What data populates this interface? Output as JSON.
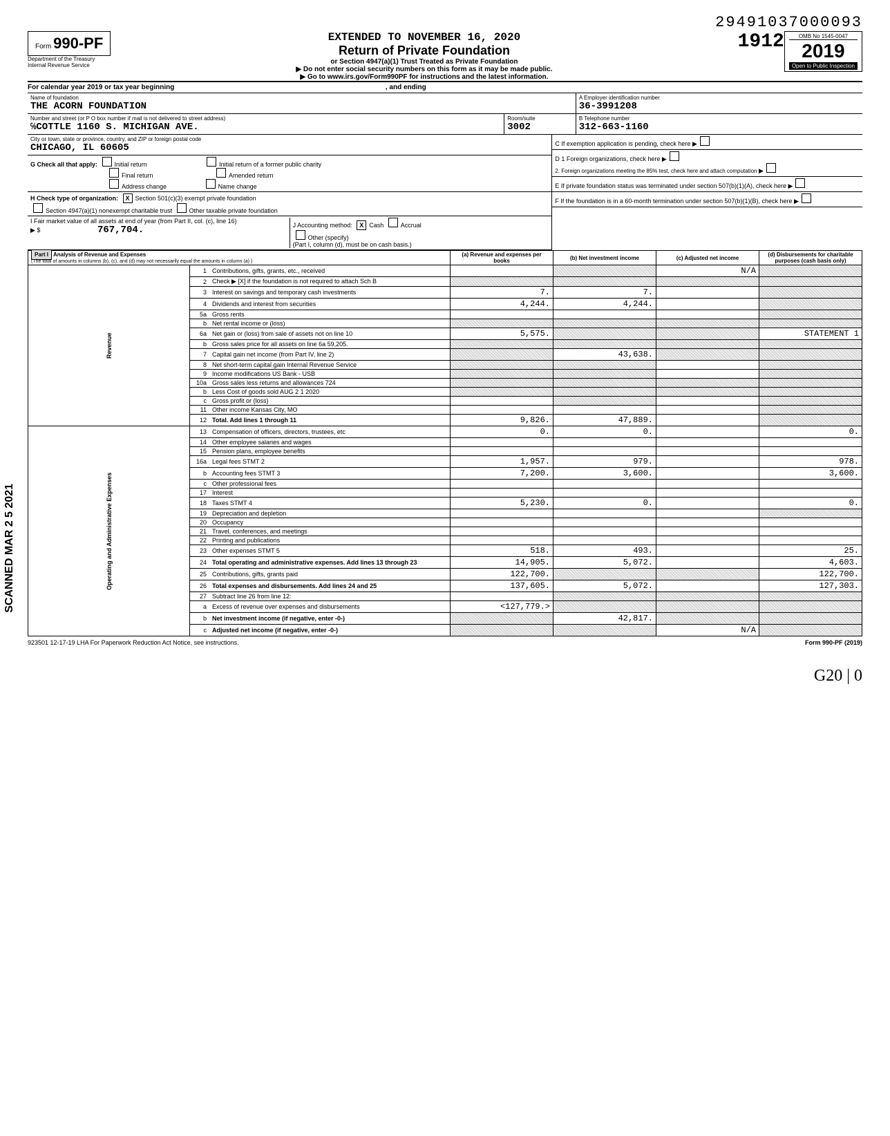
{
  "header": {
    "dln": "29491037000093",
    "extended": "EXTENDED TO NOVEMBER 16, 2020",
    "title": "Return of Private Foundation",
    "subtitle1": "or Section 4947(a)(1) Trust Treated as Private Foundation",
    "subtitle2": "▶ Do not enter social security numbers on this form as it may be made public.",
    "subtitle3": "▶ Go to www.irs.gov/Form990PF for instructions and the latest information.",
    "form_label": "Form",
    "form_number": "990-PF",
    "dept1": "Department of the Treasury",
    "dept2": "Internal Revenue Service",
    "omb": "OMB No  1545-0047",
    "year": "2019",
    "open": "Open to Public Inspection",
    "stamp_num": "1912"
  },
  "cal_year": "For calendar year 2019 or tax year beginning",
  "cal_year_end": ", and ending",
  "name": {
    "label": "Name of foundation",
    "value": "THE ACORN FOUNDATION"
  },
  "ein": {
    "label": "A Employer identification number",
    "value": "36-3991208"
  },
  "address": {
    "label": "Number and street (or P O  box number if mail is not delivered to street address)",
    "value": "℅COTTLE 1160 S. MICHIGAN AVE.",
    "room_label": "Room/suite",
    "room": "3002"
  },
  "phone": {
    "label": "B  Telephone number",
    "value": "312-663-1160"
  },
  "city": {
    "label": "City or town, state or province, country, and ZIP or foreign postal code",
    "value": "CHICAGO, IL   60605"
  },
  "box_c": "C  If exemption application is pending, check here",
  "box_g": {
    "label": "G  Check all that apply:",
    "opts": [
      "Initial return",
      "Final return",
      "Address change",
      "Initial return of a former public charity",
      "Amended return",
      "Name change"
    ]
  },
  "box_d": {
    "d1": "D 1  Foreign organizations, check here",
    "d2": "2.  Foreign organizations meeting the 85% test, check here and attach computation"
  },
  "box_h": {
    "label": "H  Check type of organization:",
    "opt1": "Section 501(c)(3) exempt private foundation",
    "opt2": "Section 4947(a)(1) nonexempt charitable trust",
    "opt3": "Other taxable private foundation"
  },
  "box_e": "E  If private foundation status was terminated under section 507(b)(1)(A), check here",
  "box_i": {
    "label": "I  Fair market value of all assets at end of year (from Part II, col. (c), line 16)",
    "value": "767,704.",
    "arrow": "▶ $"
  },
  "box_j": {
    "label": "J  Accounting method:",
    "cash": "Cash",
    "accrual": "Accrual",
    "other": "Other (specify)",
    "note": "(Part I, column (d), must be on cash basis.)"
  },
  "box_f": "F  If the foundation is in a 60-month termination under section 507(b)(1)(B), check here",
  "part1": {
    "title": "Part I",
    "heading": "Analysis of Revenue and Expenses",
    "subheading": "(The total of amounts in columns (b), (c), and (d) may not necessarily equal the amounts in column (a) )",
    "col_a": "(a) Revenue and expenses per books",
    "col_b": "(b) Net investment income",
    "col_c": "(c) Adjusted net income",
    "col_d": "(d) Disbursements for charitable purposes (cash basis only)"
  },
  "revenue_label": "Revenue",
  "expenses_label": "Operating and Administrative Expenses",
  "rows": [
    {
      "no": "1",
      "desc": "Contributions, gifts, grants, etc., received",
      "a": "",
      "b": "shaded",
      "c": "N/A",
      "d": "shaded"
    },
    {
      "no": "2",
      "desc": "Check ▶ [X] if the foundation is not required to attach Sch  B",
      "a": "shaded",
      "b": "shaded",
      "c": "shaded",
      "d": "shaded"
    },
    {
      "no": "3",
      "desc": "Interest on savings and temporary cash investments",
      "a": "7.",
      "b": "7.",
      "c": "",
      "d": "shaded"
    },
    {
      "no": "4",
      "desc": "Dividends and interest from securities",
      "a": "4,244.",
      "b": "4,244.",
      "c": "",
      "d": "shaded"
    },
    {
      "no": "5a",
      "desc": "Gross rents",
      "a": "",
      "b": "",
      "c": "",
      "d": "shaded"
    },
    {
      "no": "b",
      "desc": "Net rental income or (loss)",
      "a": "shaded",
      "b": "shaded",
      "c": "shaded",
      "d": "shaded"
    },
    {
      "no": "6a",
      "desc": "Net gain or (loss) from sale of assets not on line 10",
      "a": "5,575.",
      "b": "shaded",
      "c": "shaded",
      "d": "STATEMENT  1"
    },
    {
      "no": "b",
      "desc": "Gross sales price for all assets on line 6a          59,205.",
      "a": "shaded",
      "b": "shaded",
      "c": "shaded",
      "d": "shaded"
    },
    {
      "no": "7",
      "desc": "Capital gain net income (from Part IV, line 2)",
      "a": "shaded",
      "b": "43,638.",
      "c": "shaded",
      "d": "shaded"
    },
    {
      "no": "8",
      "desc": "Net short-term capital gain  Internal Revenue Service",
      "a": "shaded",
      "b": "shaded",
      "c": "",
      "d": "shaded"
    },
    {
      "no": "9",
      "desc": "Income modifications  US Bank - USB",
      "a": "shaded",
      "b": "shaded",
      "c": "",
      "d": "shaded"
    },
    {
      "no": "10a",
      "desc": "Gross sales less returns and allowances      724",
      "a": "shaded",
      "b": "shaded",
      "c": "shaded",
      "d": "shaded"
    },
    {
      "no": "b",
      "desc": "Less  Cost of goods sold  AUG 2 1 2020",
      "a": "shaded",
      "b": "shaded",
      "c": "shaded",
      "d": "shaded"
    },
    {
      "no": "c",
      "desc": "Gross profit or (loss)",
      "a": "",
      "b": "shaded",
      "c": "",
      "d": "shaded"
    },
    {
      "no": "11",
      "desc": "Other income    Kansas City, MO",
      "a": "",
      "b": "",
      "c": "",
      "d": "shaded"
    },
    {
      "no": "12",
      "desc": "Total. Add lines 1 through 11",
      "a": "9,826.",
      "b": "47,889.",
      "c": "",
      "d": "shaded"
    },
    {
      "no": "13",
      "desc": "Compensation of officers, directors, trustees, etc",
      "a": "0.",
      "b": "0.",
      "c": "",
      "d": "0."
    },
    {
      "no": "14",
      "desc": "Other employee salaries and wages",
      "a": "",
      "b": "",
      "c": "",
      "d": ""
    },
    {
      "no": "15",
      "desc": "Pension plans, employee benefits",
      "a": "",
      "b": "",
      "c": "",
      "d": ""
    },
    {
      "no": "16a",
      "desc": "Legal fees                           STMT  2",
      "a": "1,957.",
      "b": "979.",
      "c": "",
      "d": "978."
    },
    {
      "no": "b",
      "desc": "Accounting fees                      STMT  3",
      "a": "7,200.",
      "b": "3,600.",
      "c": "",
      "d": "3,600."
    },
    {
      "no": "c",
      "desc": "Other professional fees",
      "a": "",
      "b": "",
      "c": "",
      "d": ""
    },
    {
      "no": "17",
      "desc": "Interest",
      "a": "",
      "b": "",
      "c": "",
      "d": ""
    },
    {
      "no": "18",
      "desc": "Taxes                                STMT  4",
      "a": "5,230.",
      "b": "0.",
      "c": "",
      "d": "0."
    },
    {
      "no": "19",
      "desc": "Depreciation and depletion",
      "a": "",
      "b": "",
      "c": "",
      "d": "shaded"
    },
    {
      "no": "20",
      "desc": "Occupancy",
      "a": "",
      "b": "",
      "c": "",
      "d": ""
    },
    {
      "no": "21",
      "desc": "Travel, conferences, and meetings",
      "a": "",
      "b": "",
      "c": "",
      "d": ""
    },
    {
      "no": "22",
      "desc": "Printing and publications",
      "a": "",
      "b": "",
      "c": "",
      "d": ""
    },
    {
      "no": "23",
      "desc": "Other expenses                       STMT  5",
      "a": "518.",
      "b": "493.",
      "c": "",
      "d": "25."
    },
    {
      "no": "24",
      "desc": "Total operating and administrative expenses. Add lines 13 through 23",
      "a": "14,905.",
      "b": "5,072.",
      "c": "",
      "d": "4,603."
    },
    {
      "no": "25",
      "desc": "Contributions, gifts, grants paid",
      "a": "122,700.",
      "b": "shaded",
      "c": "shaded",
      "d": "122,700."
    },
    {
      "no": "26",
      "desc": "Total expenses and disbursements. Add lines 24 and 25",
      "a": "137,605.",
      "b": "5,072.",
      "c": "",
      "d": "127,303."
    },
    {
      "no": "27",
      "desc": "Subtract line 26 from line 12:",
      "a": "",
      "b": "shaded",
      "c": "shaded",
      "d": "shaded"
    },
    {
      "no": "a",
      "desc": "Excess of revenue over expenses and disbursements",
      "a": "<127,779.>",
      "b": "shaded",
      "c": "shaded",
      "d": "shaded"
    },
    {
      "no": "b",
      "desc": "Net investment income (if negative, enter -0-)",
      "a": "shaded",
      "b": "42,817.",
      "c": "shaded",
      "d": "shaded"
    },
    {
      "no": "c",
      "desc": "Adjusted net income (if negative, enter -0-)",
      "a": "shaded",
      "b": "shaded",
      "c": "N/A",
      "d": "shaded"
    }
  ],
  "footer": {
    "left": "923501  12-17-19   LHA  For Paperwork Reduction Act Notice, see instructions.",
    "right": "Form 990-PF (2019)"
  },
  "scanned": "SCANNED  MAR 2 5 2021",
  "hand": "G20   | 0"
}
